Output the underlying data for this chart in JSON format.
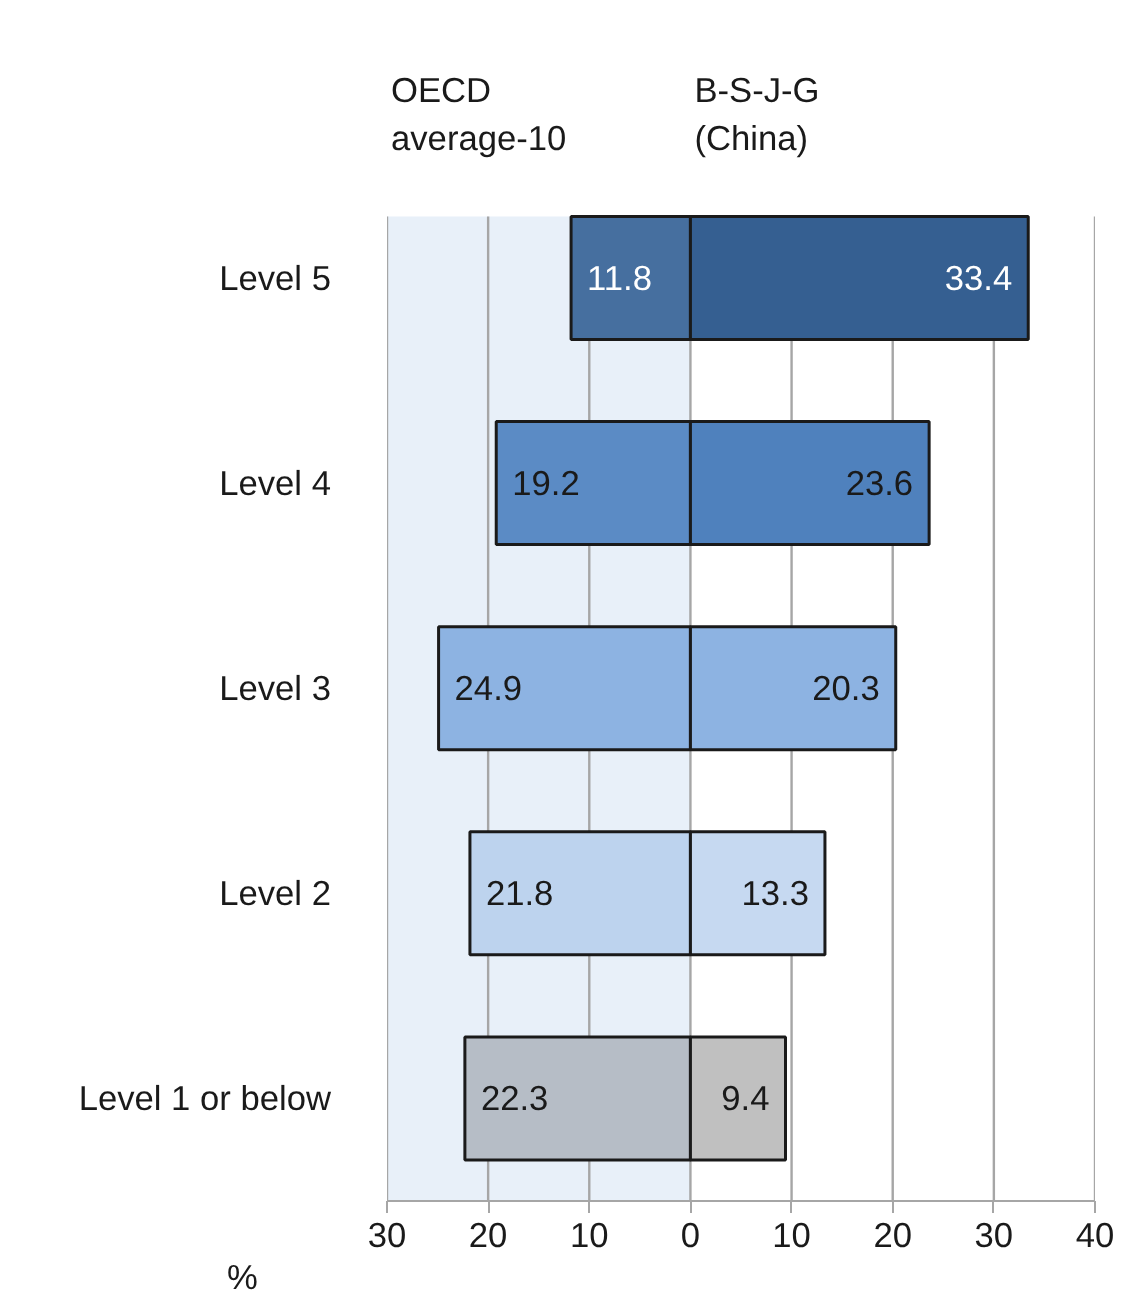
{
  "chart_data": {
    "type": "bar",
    "orientation": "horizontal",
    "categories": [
      "Level 5",
      "Level 4",
      "Level 3",
      "Level 2",
      "Level 1 or below"
    ],
    "series": [
      {
        "name": "OECD average-10",
        "colors": [
          "#466f9f",
          "#5b8bc5",
          "#8db3e2",
          "#bdd3ee",
          "#b6bdc6"
        ],
        "base": [
          -11.8,
          -19.2,
          -24.9,
          -21.8,
          -22.3
        ],
        "values": [
          11.8,
          19.2,
          24.9,
          21.8,
          22.3
        ]
      },
      {
        "name": "B-S-J-G (China)",
        "colors": [
          "#355f91",
          "#4f81bd",
          "#8db3e2",
          "#c6d9f1",
          "#c0c0c0"
        ],
        "values": [
          33.4,
          23.6,
          20.3,
          13.3,
          9.4
        ]
      }
    ],
    "data_labels": true,
    "xlim": [
      -30,
      40
    ],
    "xticks": [
      {
        "value": -30,
        "label": "30"
      },
      {
        "value": -20,
        "label": "20"
      },
      {
        "value": -10,
        "label": "10"
      },
      0,
      10,
      20,
      30,
      40
    ],
    "xlabel": "%",
    "grid": "x",
    "bands": [
      {
        "axis": "x",
        "from": -30,
        "to": 0,
        "color": "#e8f0f9"
      }
    ]
  }
}
